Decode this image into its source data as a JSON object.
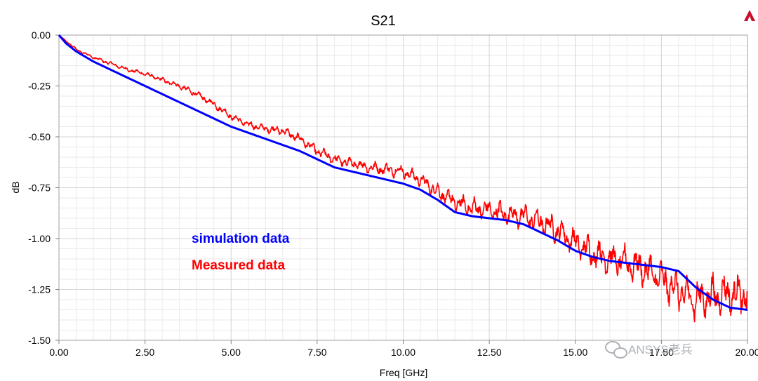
{
  "chart_data": {
    "type": "line",
    "title": "S21",
    "xlabel": "Freq [GHz]",
    "ylabel": "dB",
    "xlim": [
      0,
      20
    ],
    "ylim": [
      -1.5,
      0
    ],
    "x_ticks": [
      "0.00",
      "2.50",
      "5.00",
      "7.50",
      "10.00",
      "12.50",
      "15.00",
      "17.50",
      "20.00"
    ],
    "y_ticks": [
      "0.00",
      "-0.25",
      "-0.50",
      "-0.75",
      "-1.00",
      "-1.25",
      "-1.50"
    ],
    "grid": true,
    "legend_placement": "center-left",
    "series": [
      {
        "name": "simulation data",
        "color": "#0000ff",
        "x": [
          0,
          0.2,
          0.5,
          1,
          1.5,
          2,
          2.5,
          3,
          3.5,
          4,
          4.5,
          5,
          5.5,
          6,
          6.5,
          7,
          7.5,
          8,
          8.5,
          9,
          9.5,
          10,
          10.5,
          11,
          11.5,
          12,
          12.5,
          13,
          13.5,
          14,
          14.5,
          15,
          15.5,
          16,
          16.5,
          17,
          17.5,
          18,
          18.5,
          19,
          19.5,
          20
        ],
        "y": [
          0,
          -0.04,
          -0.08,
          -0.13,
          -0.17,
          -0.21,
          -0.25,
          -0.29,
          -0.33,
          -0.37,
          -0.41,
          -0.45,
          -0.48,
          -0.51,
          -0.54,
          -0.57,
          -0.61,
          -0.65,
          -0.67,
          -0.69,
          -0.71,
          -0.73,
          -0.76,
          -0.81,
          -0.87,
          -0.89,
          -0.9,
          -0.91,
          -0.93,
          -0.97,
          -1.01,
          -1.06,
          -1.09,
          -1.11,
          -1.12,
          -1.13,
          -1.14,
          -1.16,
          -1.24,
          -1.3,
          -1.34,
          -1.35
        ]
      },
      {
        "name": "Measured data",
        "color": "#ff0000",
        "x": [
          0,
          0.5,
          1,
          1.5,
          2,
          2.5,
          3,
          3.5,
          4,
          4.5,
          5,
          5.5,
          6,
          6.5,
          7,
          7.5,
          8,
          8.5,
          9,
          9.5,
          10,
          10.5,
          11,
          11.5,
          12,
          12.5,
          13,
          13.5,
          14,
          14.5,
          15,
          15.5,
          16,
          16.5,
          17,
          17.5,
          18,
          18.5,
          19,
          19.5,
          20
        ],
        "y": [
          0,
          -0.07,
          -0.11,
          -0.14,
          -0.17,
          -0.19,
          -0.22,
          -0.25,
          -0.29,
          -0.34,
          -0.4,
          -0.44,
          -0.46,
          -0.47,
          -0.51,
          -0.57,
          -0.61,
          -0.63,
          -0.65,
          -0.66,
          -0.67,
          -0.71,
          -0.77,
          -0.82,
          -0.85,
          -0.86,
          -0.88,
          -0.89,
          -0.92,
          -0.96,
          -1.02,
          -1.07,
          -1.1,
          -1.12,
          -1.15,
          -1.2,
          -1.26,
          -1.3,
          -1.28,
          -1.27,
          -1.28
        ],
        "noise_amplitude": [
          0,
          0.005,
          0.006,
          0.008,
          0.008,
          0.009,
          0.01,
          0.012,
          0.014,
          0.015,
          0.015,
          0.015,
          0.016,
          0.018,
          0.02,
          0.022,
          0.022,
          0.024,
          0.025,
          0.026,
          0.028,
          0.03,
          0.035,
          0.04,
          0.042,
          0.045,
          0.048,
          0.05,
          0.055,
          0.058,
          0.06,
          0.065,
          0.068,
          0.07,
          0.075,
          0.08,
          0.085,
          0.09,
          0.09,
          0.09,
          0.09
        ]
      }
    ]
  },
  "watermark": "ANSYS老兵",
  "watermark_icon": "wechat-icon",
  "logo_icon": "ansys-logo-icon"
}
